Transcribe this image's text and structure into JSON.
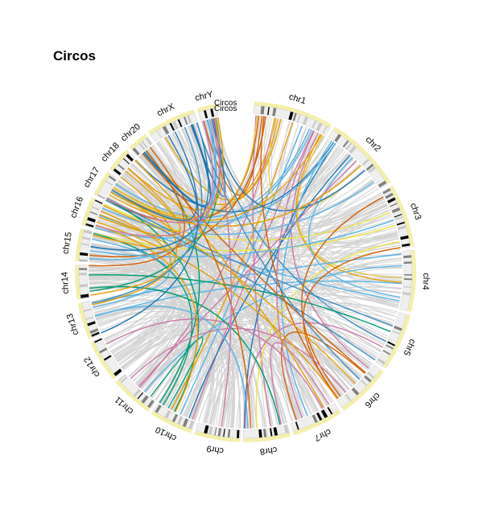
{
  "title": "Circos",
  "center_label": "Circos",
  "center_label_shadow": "Circos",
  "chromosomes": [
    {
      "name": "chr1",
      "size": 249
    },
    {
      "name": "chr2",
      "size": 243
    },
    {
      "name": "chr3",
      "size": 198
    },
    {
      "name": "chr4",
      "size": 191
    },
    {
      "name": "chr5",
      "size": 181
    },
    {
      "name": "chr6",
      "size": 171
    },
    {
      "name": "chr7",
      "size": 159
    },
    {
      "name": "chr8",
      "size": 146
    },
    {
      "name": "chr9",
      "size": 141
    },
    {
      "name": "chr10",
      "size": 136
    },
    {
      "name": "chr11",
      "size": 135
    },
    {
      "name": "chr12",
      "size": 133
    },
    {
      "name": "chr13",
      "size": 115
    },
    {
      "name": "chr14",
      "size": 107
    },
    {
      "name": "chr15",
      "size": 102
    },
    {
      "name": "chr16",
      "size": 90
    },
    {
      "name": "chr17",
      "size": 81
    },
    {
      "name": "chr18",
      "size": 78
    },
    {
      "name": "chr20",
      "size": 64
    },
    {
      "name": "chrX",
      "size": 155
    },
    {
      "name": "chrY",
      "size": 59
    }
  ],
  "colors": {
    "link_default": "#d3d3d3",
    "ring_glow": "#f4efaa",
    "band_dark": "#000000",
    "band_mid": "#7f7f7f",
    "band_light": "#c8c8c8",
    "band_bg": "#efefef",
    "palette": [
      "#1f77b4",
      "#e69f00",
      "#56b4e9",
      "#009e73",
      "#f0e442",
      "#d55e00",
      "#cc79a7",
      "#3b8fc4",
      "#e6c84a"
    ]
  }
}
